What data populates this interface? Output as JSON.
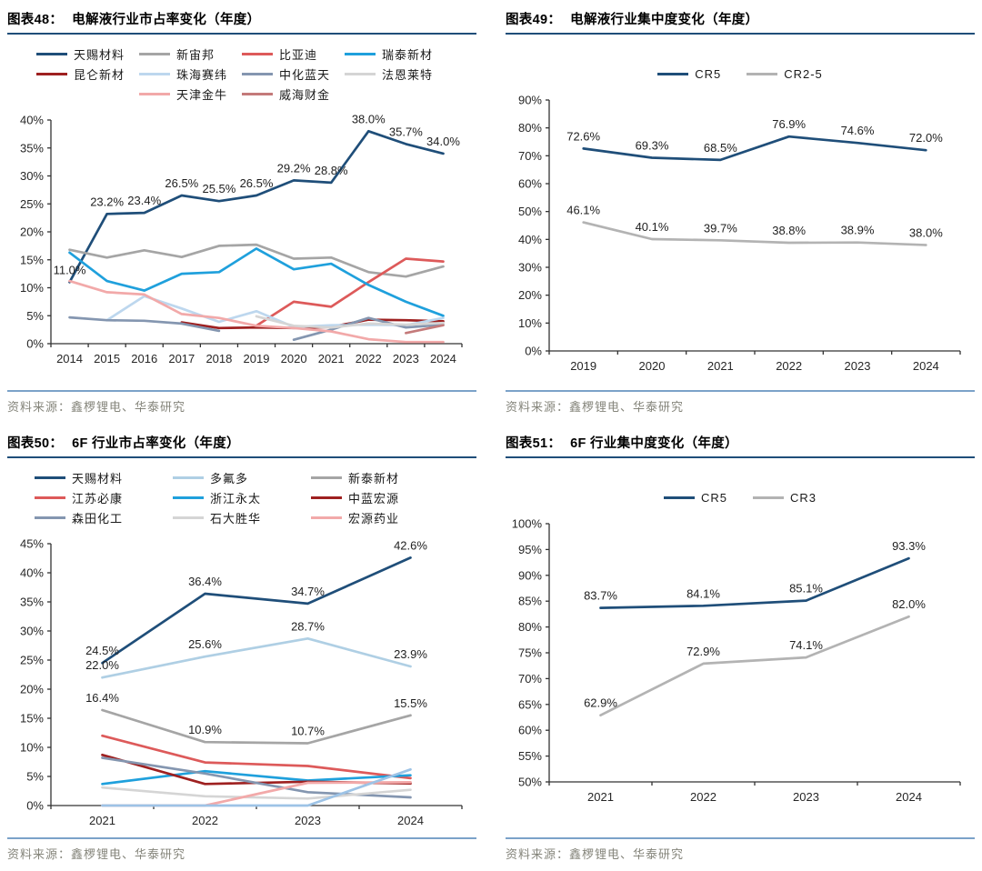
{
  "source_note": "资料来源：鑫椤锂电、华泰研究",
  "accent_colors": {
    "title_rule": "#1F4E79",
    "source_rule": "#7BA2C9",
    "source_text": "#85857B"
  },
  "panels": [
    {
      "figure_label": "图表48：",
      "title": "电解液行业市占率变化（年度）",
      "source": "资料来源：鑫椤锂电、华泰研究",
      "chart_data": {
        "type": "line",
        "x": [
          "2014",
          "2015",
          "2016",
          "2017",
          "2018",
          "2019",
          "2020",
          "2021",
          "2022",
          "2023",
          "2024"
        ],
        "ylim": [
          0,
          40
        ],
        "ytick_step": 5,
        "ytick_suffix": "%",
        "grid": false,
        "legend_position": "top",
        "series": [
          {
            "name": "天赐材料",
            "color": "#1F4E79",
            "labeled": true,
            "values": [
              11.0,
              23.2,
              23.4,
              26.5,
              25.5,
              26.5,
              29.2,
              28.8,
              38.0,
              35.7,
              34.0
            ]
          },
          {
            "name": "新宙邦",
            "color": "#A5A5A5",
            "values": [
              16.8,
              15.4,
              16.7,
              15.5,
              17.5,
              17.7,
              15.2,
              15.4,
              12.8,
              12.0,
              13.8
            ]
          },
          {
            "name": "比亚迪",
            "color": "#DD5A5A",
            "values": [
              null,
              null,
              null,
              null,
              null,
              3.2,
              7.5,
              6.6,
              11.0,
              15.2,
              14.7
            ]
          },
          {
            "name": "瑞泰新材",
            "color": "#1FA0DC",
            "values": [
              16.3,
              11.2,
              9.5,
              12.5,
              12.8,
              17.0,
              13.3,
              14.3,
              10.5,
              7.5,
              5.0
            ]
          },
          {
            "name": "昆仑新材",
            "color": "#9E2020",
            "values": [
              null,
              null,
              null,
              3.8,
              2.8,
              2.9,
              2.8,
              3.0,
              4.3,
              4.2,
              4.0
            ]
          },
          {
            "name": "珠海赛纬",
            "color": "#BDD7EE",
            "values": [
              null,
              4.2,
              8.5,
              6.3,
              3.9,
              5.8,
              3.0,
              3.3,
              3.4,
              3.3,
              4.6
            ]
          },
          {
            "name": "中化蓝天",
            "color": "#8496B0",
            "values": [
              4.7,
              4.2,
              4.1,
              3.6,
              2.3,
              null,
              0.7,
              2.5,
              4.6,
              2.9,
              3.4
            ]
          },
          {
            "name": "法恩莱特",
            "color": "#D5D5D5",
            "values": [
              null,
              null,
              null,
              null,
              null,
              4.9,
              3.2,
              2.9,
              3.6,
              3.4,
              3.7
            ]
          },
          {
            "name": "天津金牛",
            "color": "#F2A9A9",
            "values": [
              11.2,
              9.2,
              8.8,
              5.3,
              4.6,
              3.2,
              2.8,
              2.2,
              0.8,
              0.3,
              0.3
            ]
          },
          {
            "name": "威海财金",
            "color": "#C47A7A",
            "values": [
              null,
              null,
              null,
              null,
              null,
              null,
              null,
              null,
              null,
              1.9,
              3.3
            ]
          }
        ]
      }
    },
    {
      "figure_label": "图表49：",
      "title": "电解液行业集中度变化（年度）",
      "source": "资料来源：鑫椤锂电、华泰研究",
      "chart_data": {
        "type": "line",
        "x": [
          "2019",
          "2020",
          "2021",
          "2022",
          "2023",
          "2024"
        ],
        "ylim": [
          0,
          90
        ],
        "ytick_step": 10,
        "ytick_suffix": "%",
        "grid": false,
        "legend_position": "top",
        "series": [
          {
            "name": "CR5",
            "color": "#1F4E79",
            "labeled": true,
            "values": [
              72.6,
              69.3,
              68.5,
              76.9,
              74.6,
              72.0
            ]
          },
          {
            "name": "CR2-5",
            "color": "#B3B3B3",
            "labeled": true,
            "values": [
              46.1,
              40.1,
              39.7,
              38.8,
              38.9,
              38.0
            ]
          }
        ]
      }
    },
    {
      "figure_label": "图表50：",
      "title": "6F 行业市占率变化（年度）",
      "source": "资料来源：鑫椤锂电、华泰研究",
      "chart_data": {
        "type": "line",
        "x": [
          "2021",
          "2022",
          "2023",
          "2024"
        ],
        "ylim": [
          0,
          45
        ],
        "ytick_step": 5,
        "ytick_suffix": "%",
        "grid": false,
        "legend_position": "top",
        "series": [
          {
            "name": "天赐材料",
            "color": "#1F4E79",
            "labeled": true,
            "values": [
              24.5,
              36.4,
              34.7,
              42.6
            ]
          },
          {
            "name": "多氟多",
            "color": "#AFCFE4",
            "labeled": true,
            "values": [
              22.0,
              25.6,
              28.7,
              23.9
            ]
          },
          {
            "name": "新泰新材",
            "color": "#A5A5A5",
            "labeled": true,
            "values": [
              16.4,
              10.9,
              10.7,
              15.5
            ]
          },
          {
            "name": "江苏必康",
            "color": "#DD5A5A",
            "values": [
              12.0,
              7.4,
              6.8,
              4.7
            ]
          },
          {
            "name": "浙江永太",
            "color": "#1FA0DC",
            "values": [
              3.7,
              5.9,
              4.3,
              5.2
            ]
          },
          {
            "name": "中蓝宏源",
            "color": "#9E2020",
            "values": [
              8.7,
              3.7,
              4.1,
              3.8
            ]
          },
          {
            "name": "森田化工",
            "color": "#8496B0",
            "values": [
              8.2,
              5.5,
              2.3,
              1.4
            ]
          },
          {
            "name": "石大胜华",
            "color": "#D5D5D5",
            "values": [
              3.1,
              1.6,
              1.2,
              2.7
            ]
          },
          {
            "name": "宏源药业",
            "color": "#F2A9A9",
            "values": [
              0.0,
              0.0,
              3.9,
              4.0
            ]
          },
          {
            "name": "",
            "color": "#9DC3E6",
            "in_legend": false,
            "values": [
              0.0,
              0.0,
              0.0,
              6.2
            ]
          }
        ]
      }
    },
    {
      "figure_label": "图表51：",
      "title": "6F 行业集中度变化（年度）",
      "source": "资料来源：鑫椤锂电、华泰研究",
      "chart_data": {
        "type": "line",
        "x": [
          "2021",
          "2022",
          "2023",
          "2024"
        ],
        "ylim": [
          50,
          100
        ],
        "ytick_step": 5,
        "ytick_suffix": "%",
        "grid": false,
        "legend_position": "top",
        "series": [
          {
            "name": "CR5",
            "color": "#1F4E79",
            "labeled": true,
            "values": [
              83.7,
              84.1,
              85.1,
              93.3
            ]
          },
          {
            "name": "CR3",
            "color": "#B3B3B3",
            "labeled": true,
            "values": [
              62.9,
              72.9,
              74.1,
              82.0
            ]
          }
        ]
      }
    }
  ]
}
